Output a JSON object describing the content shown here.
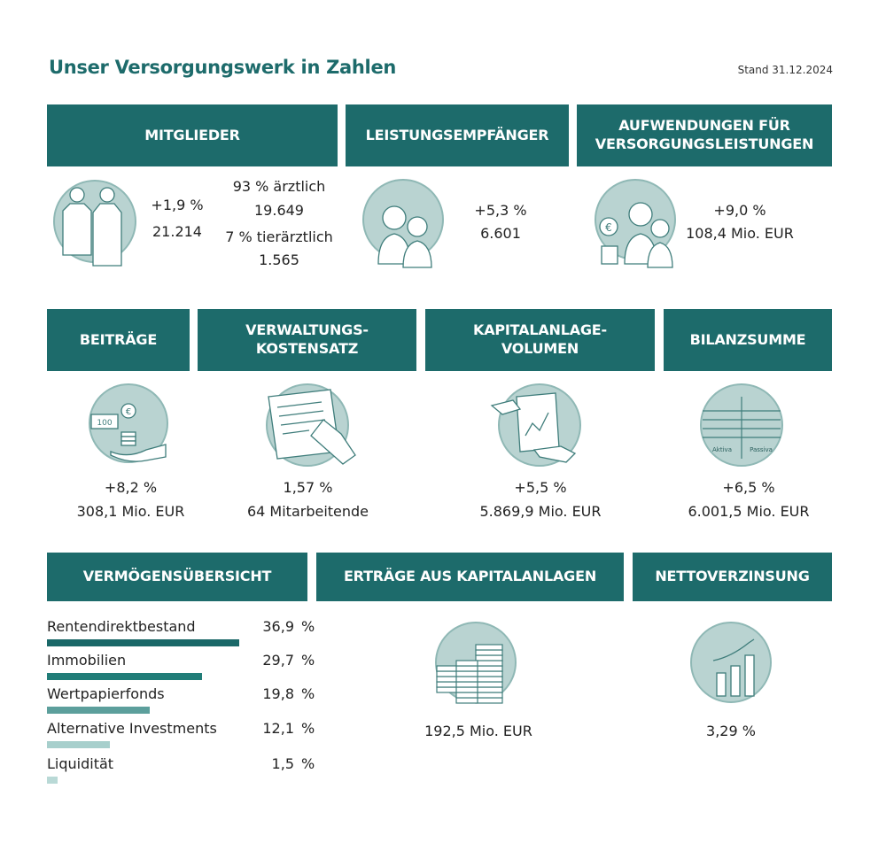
{
  "title": "Unser Versorgungswerk in Zahlen",
  "stand": "Stand 31.12.2024",
  "colors": {
    "header": "#1d6b6b",
    "icon_circle": "#b9d3d1",
    "icon_stroke": "#3f7d7b",
    "bars": [
      "#1a6868",
      "#217d78",
      "#5c9f9c",
      "#a7cfcc",
      "#b9d9d6"
    ]
  },
  "mitglieder": {
    "header": "MITGLIEDER",
    "icon": "doctors-icon",
    "change": "+1,9 %",
    "total": "21.214",
    "line1": "93 % ärztlich",
    "line2": "19.649",
    "line3": "7 % tierärztlich",
    "line4": "1.565"
  },
  "leistung": {
    "header": "LEISTUNGSEMPFÄNGER",
    "icon": "elderly-couple-icon",
    "change": "+5,3 %",
    "total": "6.601"
  },
  "aufwendungen": {
    "header1": "AUFWENDUNGEN FÜR",
    "header2": "VERSORGUNGSLEISTUNGEN",
    "icon": "elderly-euro-icon",
    "change": "+9,0 %",
    "total": "108,4 Mio. EUR"
  },
  "beitraege": {
    "header": "BEITRÄGE",
    "icon": "money-hand-icon",
    "change": "+8,2 %",
    "total": "308,1 Mio. EUR"
  },
  "verwaltung": {
    "header1": "VERWALTUNGS-",
    "header2": "KOSTENSATZ",
    "icon": "writing-hand-icon",
    "change": "1,57 %",
    "total": "64 Mitarbeitende"
  },
  "kapital": {
    "header1": "KAPITALANLAGE-",
    "header2": "VOLUMEN",
    "icon": "chart-document-icon",
    "change": "+5,5 %",
    "total": "5.869,9 Mio. EUR"
  },
  "bilanz": {
    "header": "BILANZSUMME",
    "icon": "balance-sheet-icon",
    "aktiva": "Aktiva",
    "passiva": "Passiva",
    "change": "+6,5 %",
    "total": "6.001,5 Mio. EUR"
  },
  "vermoegen": {
    "header": "VERMÖGENSÜBERSICHT",
    "pct": "%"
  },
  "ertraege": {
    "header": "ERTRÄGE AUS KAPITALANLAGEN",
    "icon": "coin-stacks-icon",
    "total": "192,5 Mio. EUR"
  },
  "netto": {
    "header": "NETTOVERZINSUNG",
    "icon": "growth-chart-icon",
    "total": "3,29 %"
  },
  "chart_data": {
    "type": "bar",
    "orientation": "horizontal",
    "categories": [
      "Rentendirektbestand",
      "Immobilien",
      "Wertpapierfonds",
      "Alternative Investments",
      "Liquidität"
    ],
    "values": [
      36.9,
      29.7,
      19.8,
      12.1,
      1.5
    ],
    "value_labels": [
      "36,9",
      "29,7",
      "19,8",
      "12,1",
      "1,5"
    ],
    "unit": "%"
  }
}
